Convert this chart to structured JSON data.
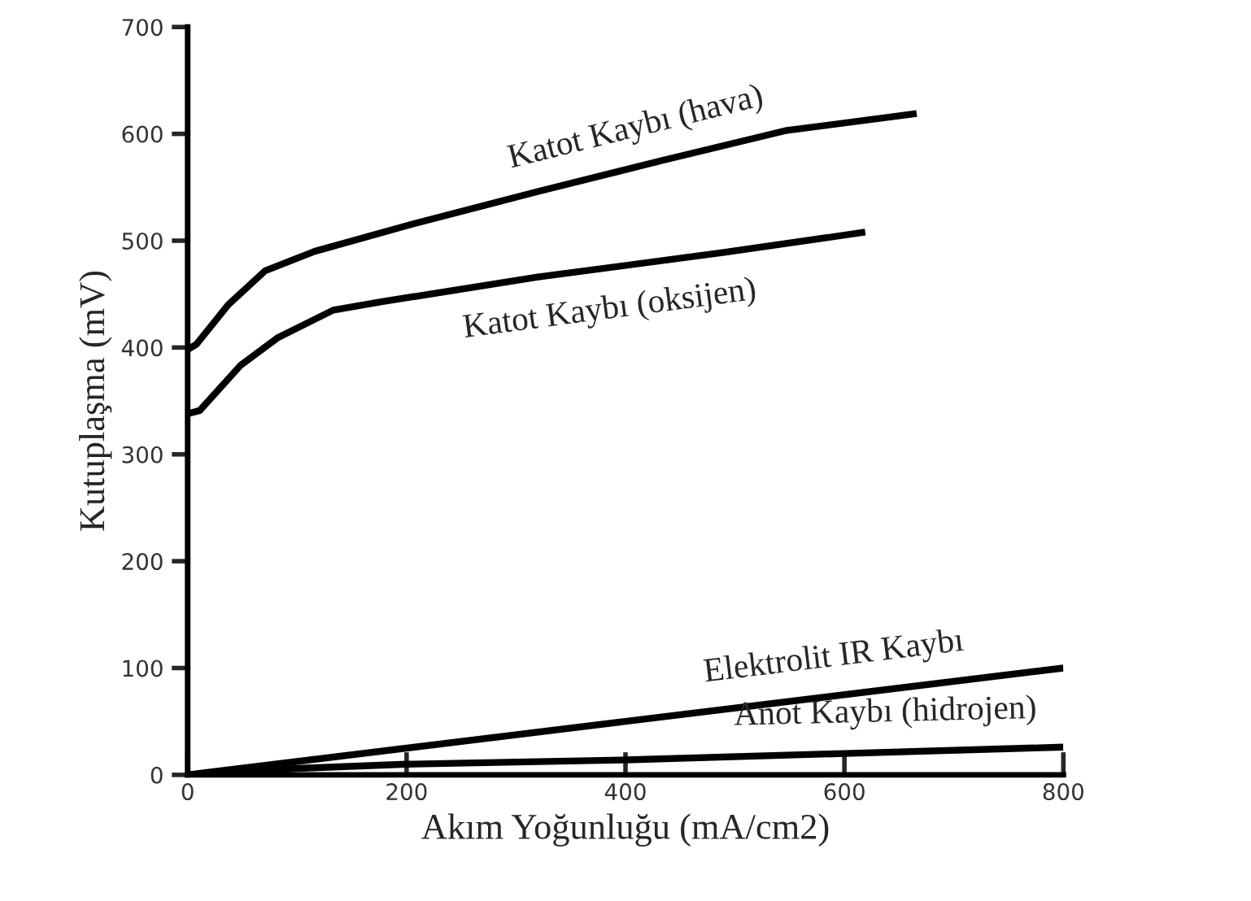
{
  "chart_data": {
    "type": "line",
    "xlabel": "Akım Yoğunluğu (mA/cm2)",
    "ylabel": "Kutuplaşma (mV)",
    "xlim": [
      0,
      800
    ],
    "ylim": [
      0,
      700
    ],
    "xticks": [
      0,
      200,
      400,
      600,
      800
    ],
    "yticks": [
      0,
      100,
      200,
      300,
      400,
      500,
      600,
      700
    ],
    "grid": false,
    "legend": false,
    "marker": "none",
    "line_style": "solid",
    "series": [
      {
        "name": "Katot Kaybı (hava)",
        "color": "#000000",
        "x": [
          0,
          8,
          37,
          71,
          116,
          207,
          320,
          433,
          546,
          666
        ],
        "values": [
          398,
          403,
          440,
          472,
          490,
          516,
          546,
          575,
          603,
          619
        ]
      },
      {
        "name": "Katot Kaybı (oksijen)",
        "color": "#000000",
        "x": [
          0,
          11,
          48,
          82,
          133,
          178,
          320,
          490,
          619
        ],
        "values": [
          338,
          341,
          383,
          409,
          435,
          443,
          466,
          489,
          508
        ]
      },
      {
        "name": "Elektrolit IR Kaybı",
        "color": "#000000",
        "x": [
          0,
          400,
          800
        ],
        "values": [
          0,
          50,
          100
        ]
      },
      {
        "name": "Anot Kaybı (hidrojen)",
        "color": "#000000",
        "x": [
          0,
          100,
          200,
          400,
          600,
          800
        ],
        "values": [
          0,
          6,
          10,
          14,
          20,
          26
        ]
      }
    ]
  }
}
